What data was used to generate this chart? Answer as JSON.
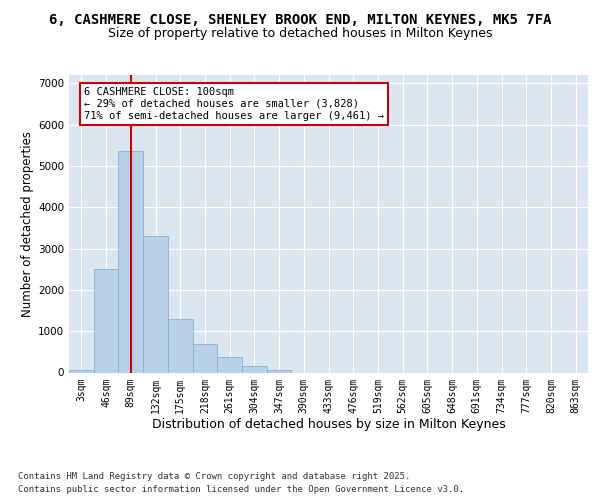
{
  "title_line1": "6, CASHMERE CLOSE, SHENLEY BROOK END, MILTON KEYNES, MK5 7FA",
  "title_line2": "Size of property relative to detached houses in Milton Keynes",
  "xlabel": "Distribution of detached houses by size in Milton Keynes",
  "ylabel": "Number of detached properties",
  "categories": [
    "3sqm",
    "46sqm",
    "89sqm",
    "132sqm",
    "175sqm",
    "218sqm",
    "261sqm",
    "304sqm",
    "347sqm",
    "390sqm",
    "433sqm",
    "476sqm",
    "519sqm",
    "562sqm",
    "605sqm",
    "648sqm",
    "691sqm",
    "734sqm",
    "777sqm",
    "820sqm",
    "863sqm"
  ],
  "values": [
    50,
    2500,
    5350,
    3300,
    1300,
    700,
    375,
    150,
    50,
    0,
    0,
    0,
    0,
    0,
    0,
    0,
    0,
    0,
    0,
    0,
    0
  ],
  "bar_color": "#b8d0e8",
  "bar_edge_color": "#7aaac8",
  "vline_x": 2,
  "vline_color": "#cc0000",
  "annotation_title": "6 CASHMERE CLOSE: 100sqm",
  "annotation_line2": "← 29% of detached houses are smaller (3,828)",
  "annotation_line3": "71% of semi-detached houses are larger (9,461) →",
  "annotation_box_color": "#cc0000",
  "ylim": [
    0,
    7200
  ],
  "yticks": [
    0,
    1000,
    2000,
    3000,
    4000,
    5000,
    6000,
    7000
  ],
  "background_color": "#dce6f0",
  "plot_background": "#dce6f0",
  "grid_color": "#ffffff",
  "footer_line1": "Contains HM Land Registry data © Crown copyright and database right 2025.",
  "footer_line2": "Contains public sector information licensed under the Open Government Licence v3.0.",
  "title_fontsize": 10,
  "subtitle_fontsize": 9,
  "axis_label_fontsize": 8.5,
  "tick_fontsize": 7,
  "footer_fontsize": 6.5
}
